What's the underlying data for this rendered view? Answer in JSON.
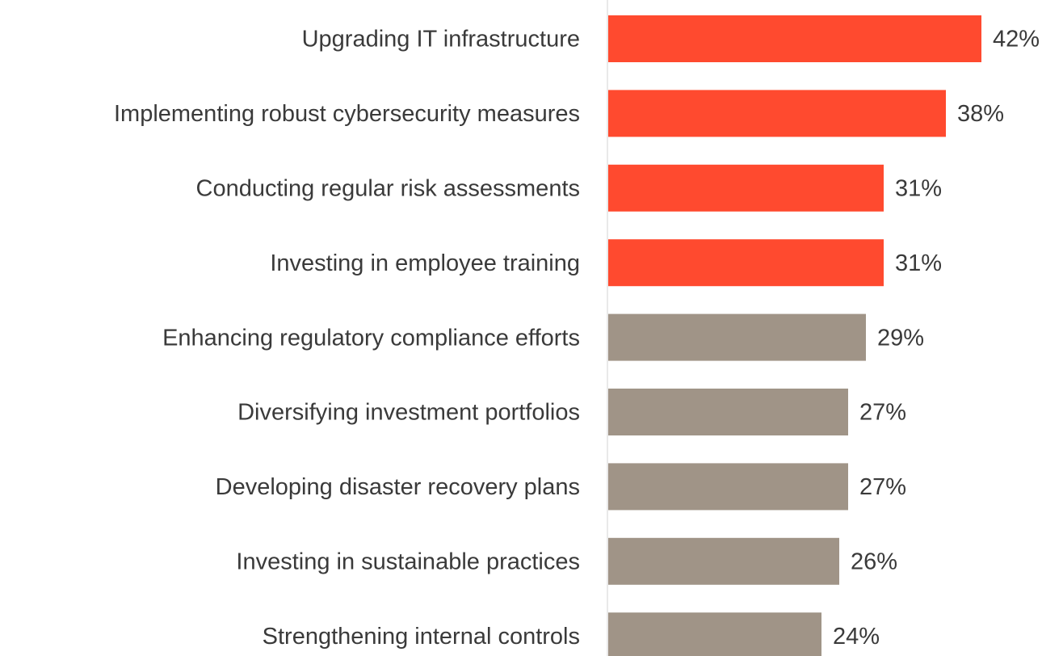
{
  "chart_data": {
    "type": "bar",
    "orientation": "horizontal",
    "categories": [
      "Upgrading IT infrastructure",
      "Implementing robust cybersecurity measures",
      "Conducting regular risk assessments",
      "Investing in employee training",
      "Enhancing regulatory compliance efforts",
      "Diversifying investment portfolios",
      "Developing disaster recovery plans",
      "Investing in sustainable practices",
      "Strengthening internal controls"
    ],
    "values": [
      42,
      38,
      31,
      31,
      29,
      27,
      27,
      26,
      24
    ],
    "value_labels": [
      "42%",
      "38%",
      "31%",
      "31%",
      "29%",
      "27%",
      "27%",
      "26%",
      "24%"
    ],
    "colors": [
      "#ff4a2f",
      "#ff4a2f",
      "#ff4a2f",
      "#ff4a2f",
      "#a09487",
      "#a09487",
      "#a09487",
      "#a09487",
      "#a09487"
    ]
  }
}
